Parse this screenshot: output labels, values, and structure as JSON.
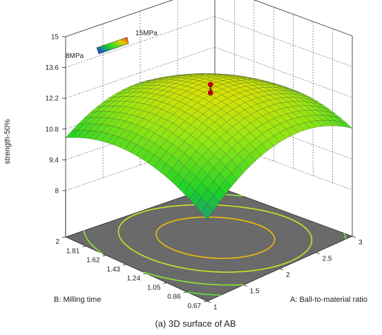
{
  "chart_data": {
    "type": "surface3d",
    "caption": "(a) 3D surface of AB",
    "zlabel": "strength-50%",
    "xlabel": "A: Ball-to-material ratio",
    "ylabel": "B: Milling time",
    "z_ticks": [
      "8",
      "9.4",
      "10.8",
      "12.2",
      "13.6",
      "15"
    ],
    "a_ticks": [
      "1",
      "1.5",
      "2",
      "2.5",
      "3"
    ],
    "b_ticks": [
      "0.67",
      "0.86",
      "1.05",
      "1.24",
      "1.43",
      "1.62",
      "1.81",
      "2"
    ],
    "zlim": [
      8,
      15
    ],
    "alim": [
      1,
      3
    ],
    "blim": [
      0.67,
      2
    ],
    "legend": {
      "low_label": "8MPa",
      "high_label": "15MPa",
      "low": 8,
      "high": 15
    },
    "design_point": {
      "a": 2,
      "b": 1.33,
      "z": 12.6
    },
    "colors": {
      "low": "#1a3cff",
      "mid": "#22dd22",
      "high": "#ff8a00",
      "floor": "#6a6a6a"
    }
  }
}
